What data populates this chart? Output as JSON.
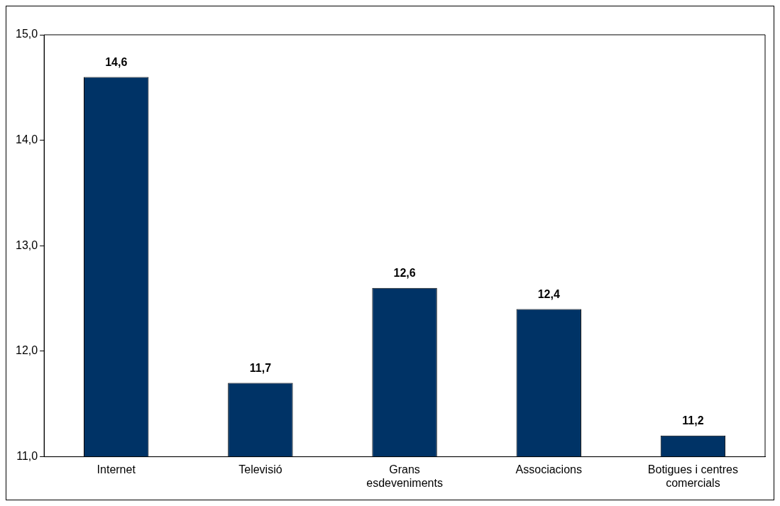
{
  "chart_data": {
    "type": "bar",
    "categories": [
      "Internet",
      "Televisió",
      "Grans esdeveniments",
      "Associacions",
      "Botigues i centres comercials"
    ],
    "values": [
      14.6,
      11.7,
      12.6,
      12.4,
      11.2
    ],
    "value_labels": [
      "14,6",
      "11,7",
      "12,6",
      "12,4",
      "11,2"
    ],
    "color": "#003366",
    "ylim": [
      11,
      15
    ],
    "yticks": [
      {
        "value": 11,
        "label": "11,0"
      },
      {
        "value": 12,
        "label": "12,0"
      },
      {
        "value": 13,
        "label": "13,0"
      },
      {
        "value": 14,
        "label": "14,0"
      },
      {
        "value": 15,
        "label": "15,0"
      }
    ],
    "grid": false,
    "legend": false
  }
}
